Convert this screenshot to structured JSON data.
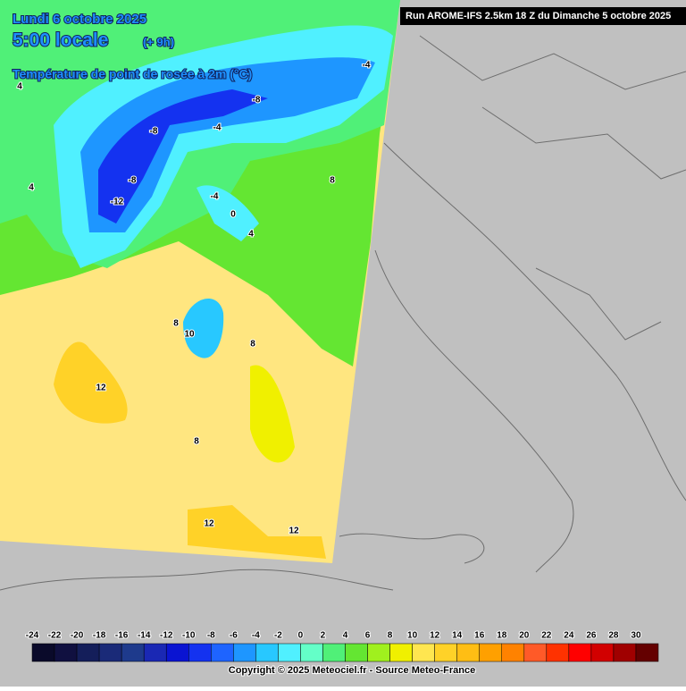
{
  "header": {
    "date": "Lundi 6 octobre 2025",
    "time": "5:00 locale",
    "offset": "(+ 9h)",
    "parameter": "Température de point de rosée à 2m (°C)",
    "run": "Run AROME-IFS 2.5km 18 Z du Dimanche 5 octobre 2025"
  },
  "contour_labels": [
    "4",
    "-4",
    "-8",
    "-8",
    "-4",
    "-8",
    "-12",
    "4",
    "-4",
    "0",
    "4",
    "8",
    "8",
    "10",
    "8",
    "12",
    "8",
    "12",
    "12"
  ],
  "colorbar": {
    "ticks": [
      -24,
      -22,
      -20,
      -18,
      -16,
      -14,
      -12,
      -10,
      -8,
      -6,
      -4,
      -2,
      0,
      2,
      4,
      6,
      8,
      10,
      12,
      14,
      16,
      18,
      20,
      22,
      24,
      26,
      28,
      30
    ],
    "colors": [
      "#0a0a2a",
      "#101040",
      "#141e5a",
      "#1a2a78",
      "#1e3a8c",
      "#1a28b4",
      "#0a14d2",
      "#1432f0",
      "#1e64ff",
      "#1e96ff",
      "#28c8ff",
      "#50f0ff",
      "#64ffc8",
      "#50f078",
      "#64e632",
      "#a0f01e",
      "#f0f000",
      "#ffe650",
      "#ffd228",
      "#ffbe14",
      "#ffa000",
      "#ff8200",
      "#ff5a28",
      "#ff3200",
      "#ff0000",
      "#d20000",
      "#a00000",
      "#640000"
    ]
  },
  "footer": {
    "copyright": "Copyright © 2025 Meteociel.fr - Source Meteo-France"
  }
}
